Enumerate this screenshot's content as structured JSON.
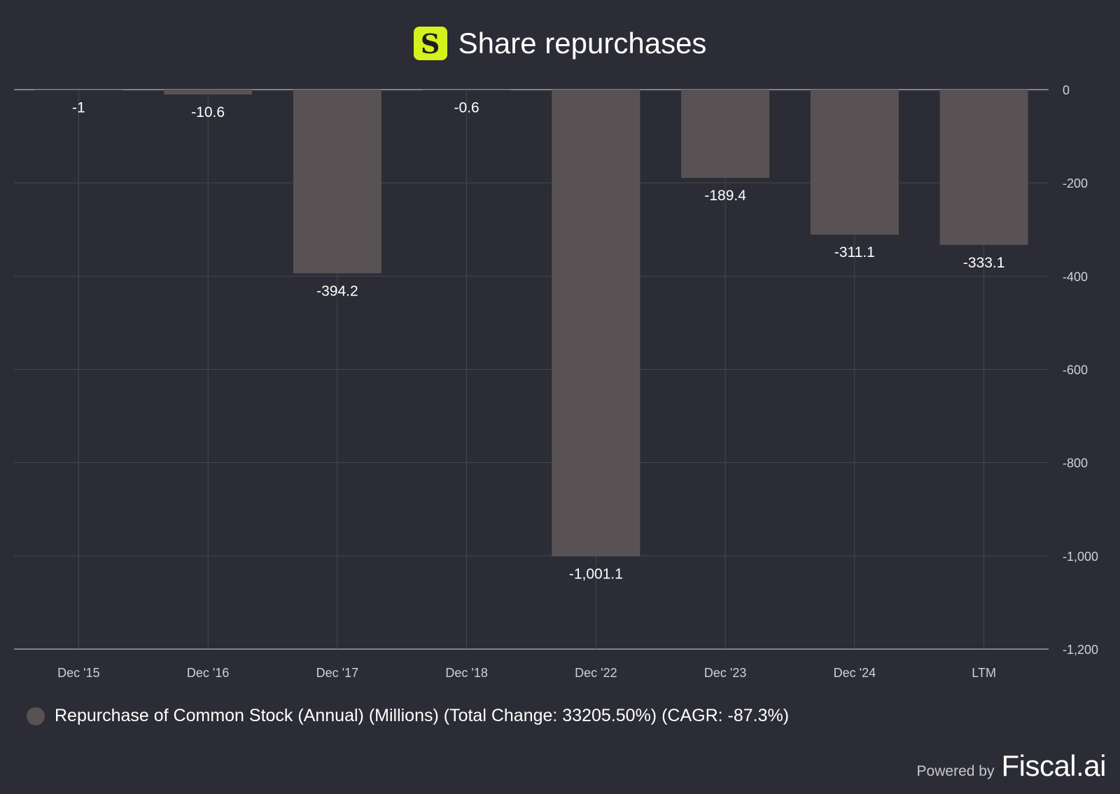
{
  "header": {
    "logo_letter": "S",
    "title": "Share repurchases"
  },
  "colors": {
    "background": "#2b2c35",
    "bar": "#585254",
    "grid": "#464852",
    "axis": "#9a9ca6",
    "logo": "#d4f21c",
    "text": "#ffffff",
    "tick_text": "#d0d0d6"
  },
  "chart_data": {
    "type": "bar",
    "title": "Share repurchases",
    "categories": [
      "Dec '15",
      "Dec '16",
      "Dec '17",
      "Dec '18",
      "Dec '22",
      "Dec '23",
      "Dec '24",
      "LTM"
    ],
    "series": [
      {
        "name": "Repurchase of Common Stock (Annual) (Millions)",
        "values": [
          -1,
          -10.6,
          -394.2,
          -0.6,
          -1001.1,
          -189.4,
          -311.1,
          -333.1
        ],
        "labels": [
          "-1",
          "-10.6",
          "-394.2",
          "-0.6",
          "-1,001.1",
          "-189.4",
          "-311.1",
          "-333.1"
        ]
      }
    ],
    "ylim": [
      -1200,
      0
    ],
    "yticks": [
      0,
      -200,
      -400,
      -600,
      -800,
      -1000,
      -1200
    ],
    "ytick_labels": [
      "0",
      "-200",
      "-400",
      "-600",
      "-800",
      "-1,000",
      "-1,200"
    ],
    "y_axis_side": "right",
    "grid": true,
    "xlabel": "",
    "ylabel": ""
  },
  "legend": {
    "text": "Repurchase of Common Stock (Annual) (Millions) (Total Change: 33205.50%) (CAGR: -87.3%)"
  },
  "footer": {
    "powered_by": "Powered by",
    "brand": "Fiscal.ai"
  }
}
